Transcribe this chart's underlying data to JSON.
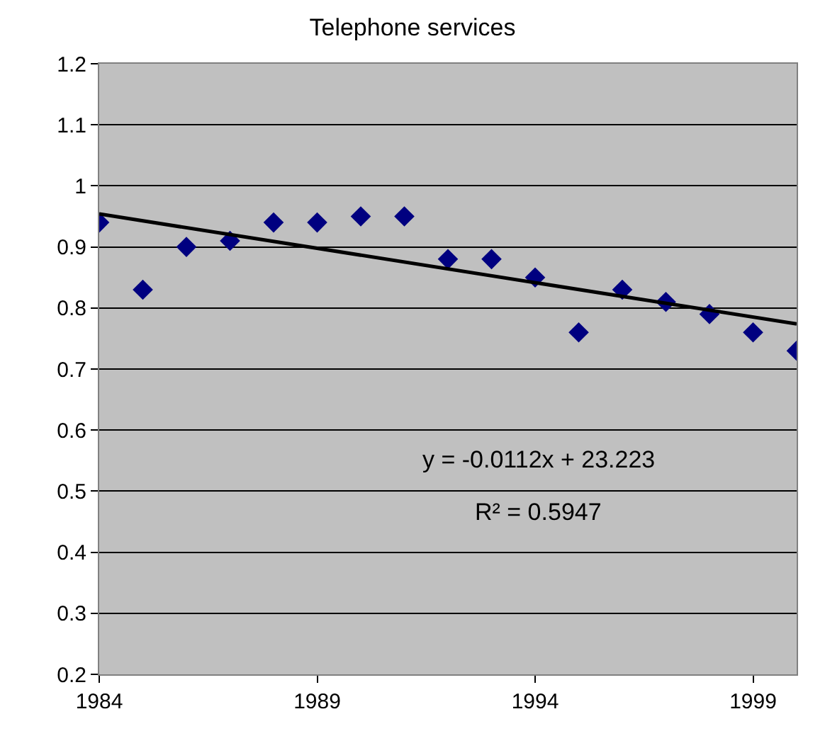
{
  "chart_data": {
    "type": "scatter",
    "title": "Telephone services",
    "x": [
      1984,
      1985,
      1986,
      1987,
      1988,
      1989,
      1990,
      1991,
      1992,
      1993,
      1994,
      1995,
      1996,
      1997,
      1998,
      1999,
      2000
    ],
    "series": [
      {
        "color": "#000080",
        "marker": "diamond",
        "values": [
          0.94,
          0.83,
          0.9,
          0.91,
          0.94,
          0.94,
          0.95,
          0.95,
          0.88,
          0.88,
          0.85,
          0.76,
          0.83,
          0.81,
          0.79,
          0.76,
          0.73
        ]
      },
      {
        "type": "line",
        "color": "#000000",
        "x": [
          1984,
          2000
        ],
        "values": [
          0.954,
          0.774
        ]
      }
    ],
    "xlim": [
      1984,
      2000
    ],
    "xticks": [
      1984,
      1989,
      1994,
      1999
    ],
    "ylim": [
      0.2,
      1.2
    ],
    "yticks": [
      0.2,
      0.3,
      0.4,
      0.5,
      0.6,
      0.7,
      0.8,
      0.9,
      1,
      1.1,
      1.2
    ],
    "grid": "y",
    "annotations": [
      "y = -0.0112x + 23.223",
      "R² = 0.5947"
    ]
  }
}
